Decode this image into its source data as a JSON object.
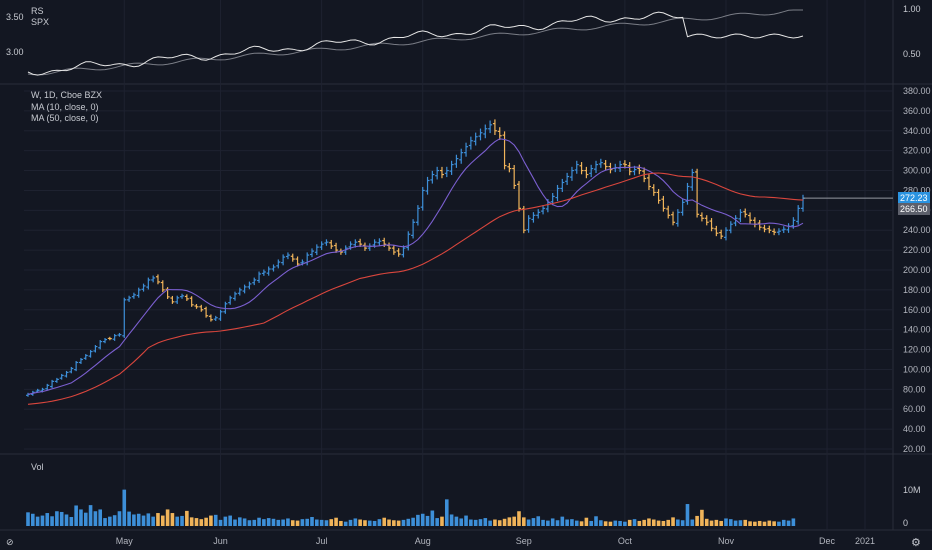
{
  "colors": {
    "background": "#131722",
    "grid": "#1e2230",
    "up": "#3d8fd8",
    "down": "#f0b45a",
    "ma10": "#7b5fd0",
    "ma50": "#d9463d",
    "rs": "#e6e6e6",
    "spx": "#7a7d86",
    "last_price_tag": "#2a93e0",
    "ma_tag": "#5d606b"
  },
  "rs_panel": {
    "labels": [
      "RS",
      "SPX"
    ],
    "left_ticks": [
      "3.50",
      "3.00"
    ],
    "right_ticks": [
      "1.00",
      "0.50"
    ]
  },
  "price_panel": {
    "title": "W, 1D, Cboe BZX",
    "indicators": [
      "MA (10, close, 0)",
      "MA (50, close, 0)"
    ],
    "last_price_label": "272.23",
    "ma_value_label": "266.50"
  },
  "volume_panel": {
    "label": "Vol",
    "right_ticks": [
      "10M",
      "0"
    ]
  },
  "chart_data": {
    "type": "ohlc",
    "xlabels": [
      "May",
      "Jun",
      "Jul",
      "Aug",
      "Sep",
      "Oct",
      "Nov",
      "Dec",
      "2021"
    ],
    "price_ticks": [
      380,
      360,
      340,
      320,
      300,
      280,
      260,
      240,
      220,
      200,
      180,
      160,
      140,
      120,
      100,
      80,
      60,
      40,
      20
    ],
    "ylim": [
      20,
      380
    ],
    "closes": [
      75,
      77,
      79,
      80,
      84,
      88,
      90,
      94,
      97,
      101,
      107,
      110,
      114,
      118,
      123,
      128,
      130,
      131,
      134,
      135,
      170,
      172,
      175,
      180,
      184,
      190,
      192,
      188,
      180,
      173,
      168,
      172,
      174,
      171,
      165,
      163,
      160,
      154,
      150,
      152,
      158,
      166,
      172,
      176,
      180,
      183,
      186,
      190,
      196,
      198,
      201,
      203,
      208,
      213,
      215,
      211,
      206,
      208,
      215,
      219,
      223,
      226,
      228,
      224,
      220,
      218,
      222,
      226,
      228,
      226,
      222,
      224,
      228,
      229,
      226,
      222,
      218,
      216,
      222,
      236,
      248,
      262,
      280,
      290,
      296,
      300,
      296,
      300,
      306,
      312,
      318,
      324,
      330,
      334,
      338,
      342,
      346,
      340,
      335,
      305,
      302,
      285,
      262,
      240,
      252,
      255,
      258,
      262,
      268,
      274,
      282,
      288,
      294,
      300,
      306,
      300,
      296,
      302,
      306,
      308,
      304,
      301,
      303,
      306,
      306,
      299,
      301,
      300,
      292,
      284,
      278,
      270,
      262,
      255,
      248,
      258,
      268,
      284,
      298,
      256,
      252,
      248,
      242,
      237,
      234,
      240,
      246,
      252,
      258,
      256,
      250,
      246,
      243,
      241,
      240,
      238,
      239,
      241,
      244,
      250,
      262,
      272.23
    ],
    "volumes_m": [
      3.8,
      3.4,
      2.6,
      2.9,
      3.6,
      2.7,
      4.1,
      3.9,
      3.2,
      2.5,
      5.7,
      4.6,
      3.7,
      5.8,
      4.1,
      4.6,
      2.2,
      2.6,
      3.0,
      4.1,
      10.1,
      4.0,
      3.2,
      3.4,
      2.9,
      3.5,
      2.6,
      3.6,
      2.9,
      4.6,
      3.6,
      2.6,
      2.8,
      4.2,
      2.4,
      2.2,
      1.9,
      2.3,
      2.9,
      3.1,
      1.7,
      2.6,
      2.9,
      1.8,
      2.4,
      2.1,
      1.6,
      1.7,
      2.3,
      1.9,
      2.2,
      2.0,
      1.7,
      1.8,
      2.1,
      1.6,
      1.5,
      1.9,
      2.0,
      2.5,
      1.8,
      1.7,
      1.6,
      1.9,
      2.3,
      1.4,
      1.2,
      1.7,
      2.1,
      1.8,
      1.6,
      1.5,
      1.4,
      1.9,
      2.3,
      1.8,
      1.6,
      1.5,
      1.7,
      2.0,
      2.3,
      3.1,
      3.4,
      2.8,
      4.3,
      2.2,
      2.6,
      7.4,
      3.2,
      2.6,
      2.1,
      2.9,
      1.8,
      1.7,
      1.9,
      2.2,
      1.5,
      1.8,
      1.6,
      2.0,
      2.4,
      2.6,
      4.1,
      2.4,
      1.8,
      2.2,
      2.7,
      1.7,
      1.5,
      2.1,
      1.6,
      2.6,
      1.8,
      1.9,
      1.5,
      1.3,
      2.3,
      1.4,
      2.7,
      1.6,
      1.3,
      1.2,
      1.5,
      1.4,
      1.2,
      1.7,
      1.9,
      1.4,
      1.7,
      2.1,
      1.8,
      1.5,
      1.4,
      1.7,
      2.4,
      1.8,
      1.6,
      6.1,
      1.8,
      2.8,
      4.5,
      2.0,
      1.5,
      1.7,
      1.4,
      2.1,
      1.9,
      1.5,
      1.6,
      1.7,
      1.3,
      1.2,
      1.4,
      1.2,
      1.5,
      1.3,
      1.2,
      1.7,
      1.5,
      2.1
    ]
  }
}
